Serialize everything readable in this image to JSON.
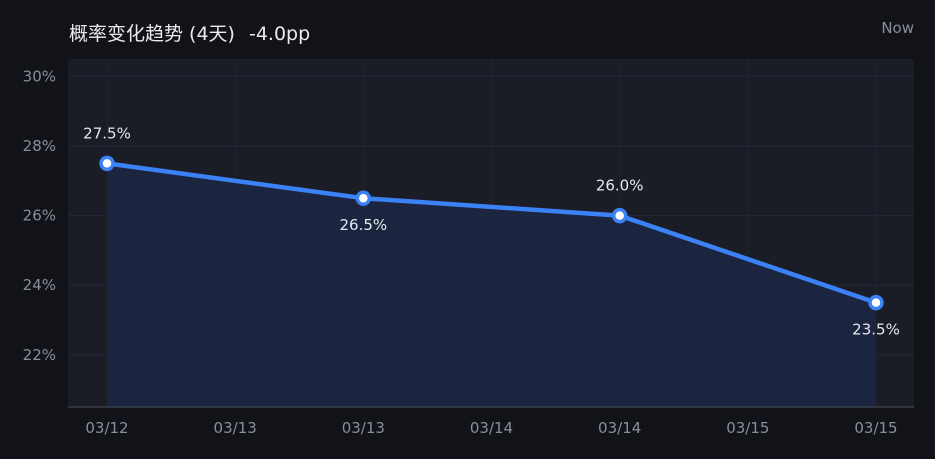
{
  "header": {
    "title": "概率变化趋势 (4天)",
    "delta": "-4.0pp",
    "now_label": "Now"
  },
  "colors": {
    "background": "#111318",
    "plot_bg": "#1a1c26",
    "line": "#3b82f6",
    "fill": "#1c2640",
    "text": "#e9ebf0",
    "muted": "#8a8e99"
  },
  "chart_data": {
    "type": "area",
    "title": "概率变化趋势 (4天)",
    "x": [
      "03/12",
      "03/13",
      "03/14",
      "03/15"
    ],
    "y": [
      27.5,
      26.5,
      26.0,
      23.5
    ],
    "data_labels": [
      "27.5%",
      "26.5%",
      "26.0%",
      "23.5%"
    ],
    "x_tick_labels": [
      "03/12",
      "03/13",
      "03/13",
      "03/14",
      "03/14",
      "03/15",
      "03/15"
    ],
    "y_ticks": [
      22,
      24,
      26,
      28,
      30
    ],
    "y_tick_labels": [
      "22%",
      "24%",
      "26%",
      "28%",
      "30%"
    ],
    "ylim": [
      20.5,
      30.5
    ],
    "grid": true,
    "xlabel": "",
    "ylabel": ""
  }
}
